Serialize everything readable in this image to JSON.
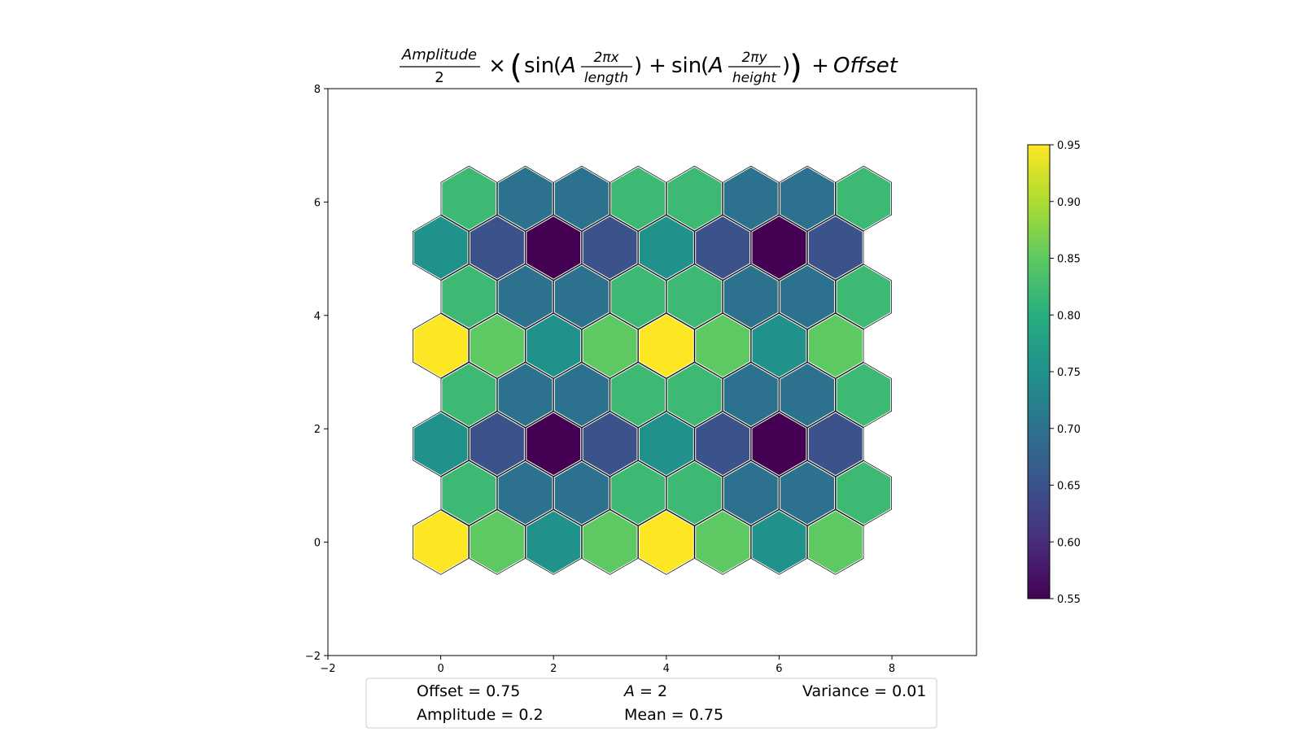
{
  "chart_data": {
    "type": "heatmap",
    "title": {
      "amplitude_term": "Amplitude",
      "two": "2",
      "times": "×",
      "sin": "sin",
      "a": "A",
      "two_pi_x": "2πx",
      "length": "length",
      "plus": "+",
      "two_pi_y": "2πy",
      "height": "height",
      "offset_term": "Offset"
    },
    "xlim": [
      -2,
      9.5
    ],
    "ylim": [
      -2,
      8
    ],
    "x_ticks": [
      -2,
      0,
      2,
      4,
      6,
      8
    ],
    "y_ticks": [
      -2,
      0,
      2,
      4,
      6,
      8
    ],
    "colorbar": {
      "min": 0.55,
      "max": 0.95,
      "ticks": [
        0.55,
        0.6,
        0.65,
        0.7,
        0.75,
        0.8,
        0.85,
        0.9,
        0.95
      ]
    },
    "row_y": [
      0,
      0.866,
      1.732,
      2.598,
      3.464,
      4.33,
      5.196,
      6.062
    ],
    "row_x_offset": [
      0,
      0.5,
      0,
      0.5,
      0,
      0.5,
      0,
      0.5
    ],
    "values": [
      [
        0.95,
        0.85,
        0.75,
        0.85,
        0.95,
        0.85,
        0.75,
        0.85
      ],
      [
        0.82,
        0.7,
        0.7,
        0.82,
        0.82,
        0.7,
        0.7,
        0.82
      ],
      [
        0.75,
        0.65,
        0.55,
        0.65,
        0.75,
        0.65,
        0.55,
        0.65
      ],
      [
        0.82,
        0.7,
        0.7,
        0.82,
        0.82,
        0.7,
        0.7,
        0.82
      ],
      [
        0.95,
        0.85,
        0.75,
        0.85,
        0.95,
        0.85,
        0.75,
        0.85
      ],
      [
        0.82,
        0.7,
        0.7,
        0.82,
        0.82,
        0.7,
        0.7,
        0.82
      ],
      [
        0.75,
        0.65,
        0.55,
        0.65,
        0.75,
        0.65,
        0.55,
        0.65
      ],
      [
        0.82,
        0.7,
        0.7,
        0.82,
        0.82,
        0.7,
        0.7,
        0.82
      ]
    ],
    "colormap": "viridis",
    "grid": false
  },
  "info_box": {
    "offset": "Offset = 0.75",
    "a_symbol": "A",
    "a_value": " = 2",
    "variance": "Variance = 0.01",
    "amplitude": "Amplitude = 0.2",
    "mean": "Mean = 0.75"
  }
}
